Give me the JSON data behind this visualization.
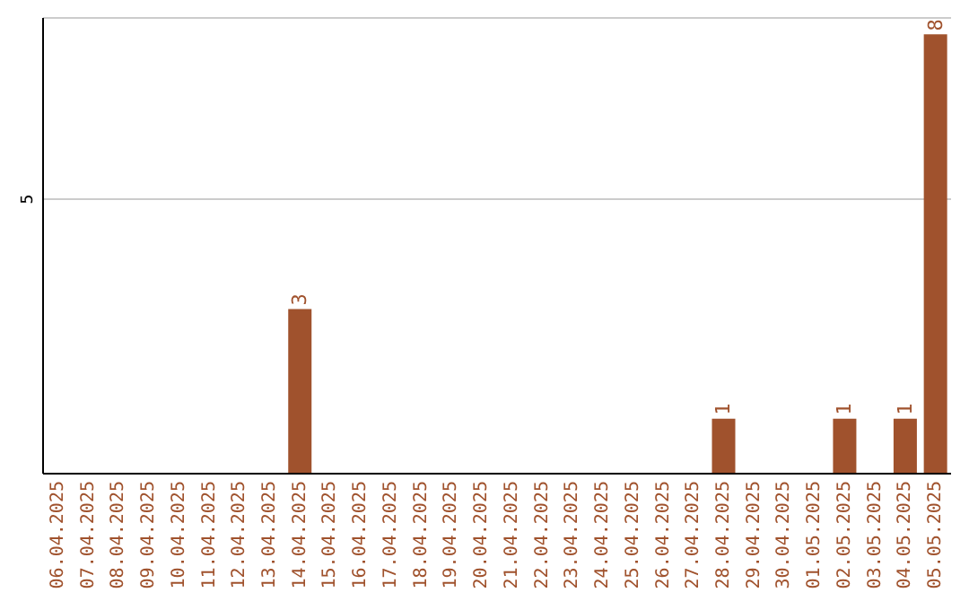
{
  "chart_data": {
    "type": "bar",
    "categories": [
      "06.04.2025",
      "07.04.2025",
      "08.04.2025",
      "09.04.2025",
      "10.04.2025",
      "11.04.2025",
      "12.04.2025",
      "13.04.2025",
      "14.04.2025",
      "15.04.2025",
      "16.04.2025",
      "17.04.2025",
      "18.04.2025",
      "19.04.2025",
      "20.04.2025",
      "21.04.2025",
      "22.04.2025",
      "23.04.2025",
      "24.04.2025",
      "25.04.2025",
      "26.04.2025",
      "27.04.2025",
      "28.04.2025",
      "29.04.2025",
      "30.04.2025",
      "01.05.2025",
      "02.05.2025",
      "03.05.2025",
      "04.05.2025",
      "05.05.2025"
    ],
    "values": [
      0,
      0,
      0,
      0,
      0,
      0,
      0,
      0,
      3,
      0,
      0,
      0,
      0,
      0,
      0,
      0,
      0,
      0,
      0,
      0,
      0,
      0,
      1,
      0,
      0,
      0,
      1,
      0,
      1,
      8
    ],
    "value_labels": [
      null,
      null,
      null,
      null,
      null,
      null,
      null,
      null,
      "3",
      null,
      null,
      null,
      null,
      null,
      null,
      null,
      null,
      null,
      null,
      null,
      null,
      null,
      "1",
      null,
      null,
      null,
      "1",
      null,
      "1",
      "8"
    ],
    "color": "#a0522d",
    "ylim": [
      0,
      8.3
    ],
    "yticks": [
      5
    ],
    "grid": "y"
  }
}
